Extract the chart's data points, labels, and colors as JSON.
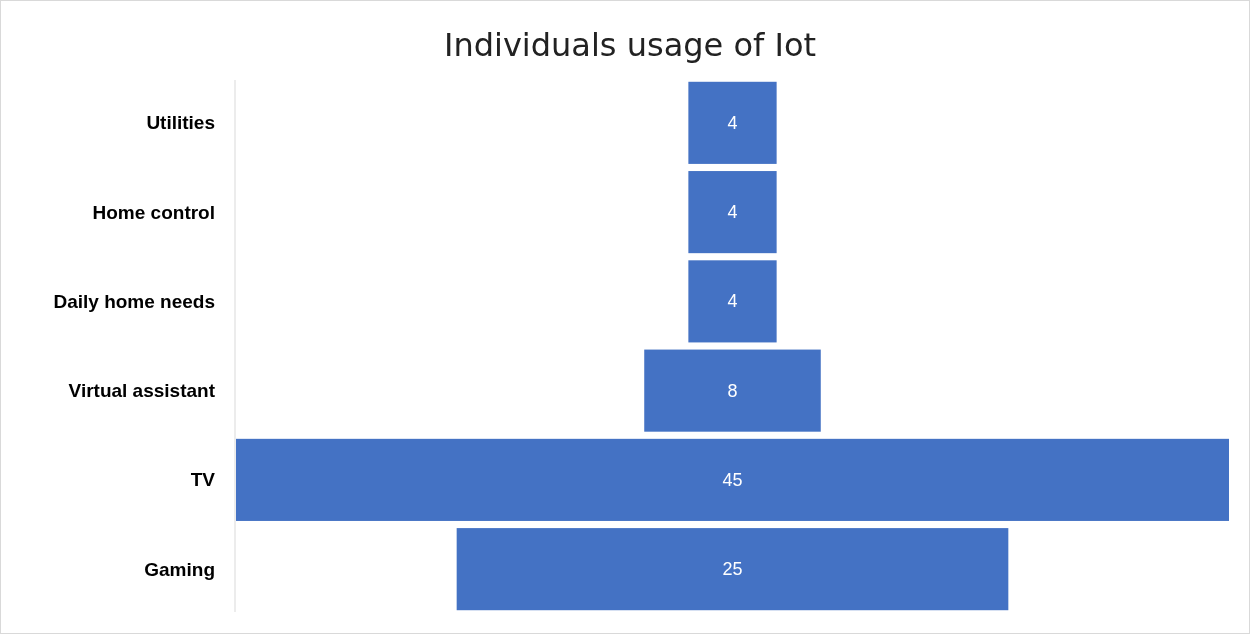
{
  "chart_data": {
    "type": "other",
    "title": "Individuals usage of Iot",
    "categories": [
      "Utilities",
      "Home control",
      "Daily home needs",
      "Virtual assistant",
      "TV",
      "Gaming"
    ],
    "values": [
      4,
      4,
      4,
      8,
      45,
      25
    ],
    "color": "#4472c4",
    "data_labels": true
  }
}
